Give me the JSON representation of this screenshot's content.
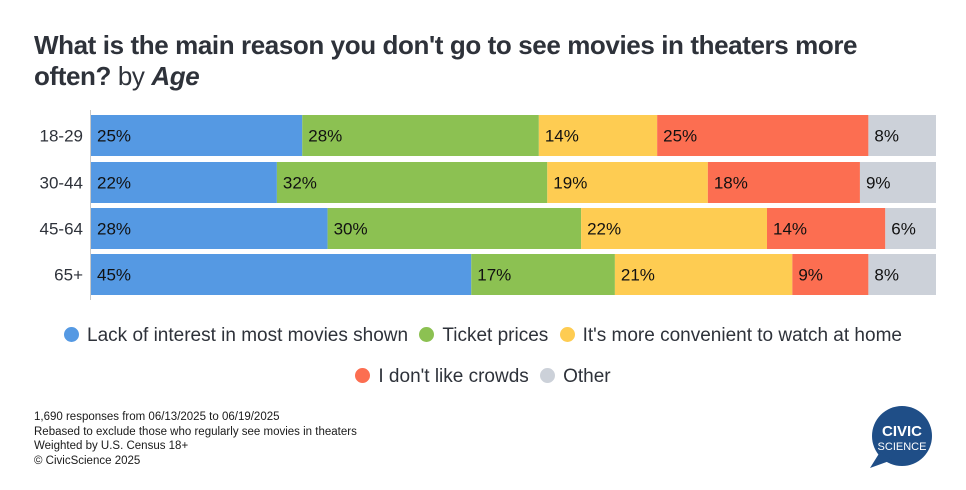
{
  "title": {
    "question": "What is the main reason you don't go to see movies in theaters more often?",
    "by": "by",
    "dimension": "Age"
  },
  "chart_data": {
    "type": "bar",
    "orientation": "horizontal",
    "stacked": true,
    "title": "What is the main reason you don't go to see movies in theaters more often? by Age",
    "xlabel": "",
    "ylabel": "",
    "xlim": [
      0,
      100
    ],
    "grid": false,
    "legend_position": "bottom",
    "categories": [
      "18-29",
      "30-44",
      "45-64",
      "65+"
    ],
    "series": [
      {
        "name": "Lack of interest in most movies shown",
        "color": "#5599e3",
        "values": [
          25,
          22,
          28,
          45
        ],
        "labels": [
          "25%",
          "22%",
          "28%",
          "45%"
        ]
      },
      {
        "name": "Ticket prices",
        "color": "#8cc152",
        "values": [
          28,
          32,
          30,
          17
        ],
        "labels": [
          "28%",
          "32%",
          "30%",
          "17%"
        ]
      },
      {
        "name": "It's more convenient to watch at home",
        "color": "#fecc52",
        "values": [
          14,
          19,
          22,
          21
        ],
        "labels": [
          "14%",
          "19%",
          "22%",
          "21%"
        ]
      },
      {
        "name": "I don't like crowds",
        "color": "#fc6e51",
        "values": [
          25,
          18,
          14,
          9
        ],
        "labels": [
          "25%",
          "18%",
          "14%",
          "9%"
        ]
      },
      {
        "name": "Other",
        "color": "#ccd1d9",
        "values": [
          8,
          9,
          6,
          8
        ],
        "labels": [
          "8%",
          "9%",
          "6%",
          "8%"
        ]
      }
    ]
  },
  "legend": {
    "row1": [
      {
        "label": "Lack of interest in most movies shown",
        "color": "#5599e3"
      },
      {
        "label": "Ticket prices",
        "color": "#8cc152"
      },
      {
        "label": "It's more convenient to watch at home",
        "color": "#fecc52"
      }
    ],
    "row2": [
      {
        "label": "I don't like crowds",
        "color": "#fc6e51"
      },
      {
        "label": "Other",
        "color": "#ccd1d9"
      }
    ]
  },
  "footer": {
    "line1": "1,690 responses from 06/13/2025 to 06/19/2025",
    "line2": "Rebased to exclude those who regularly see movies in theaters",
    "line3": "Weighted by U.S. Census 18+",
    "line4": "© CivicScience 2025"
  },
  "logo": {
    "line1": "CIVIC",
    "line2": "SCIENCE",
    "color": "#1f4e87"
  }
}
